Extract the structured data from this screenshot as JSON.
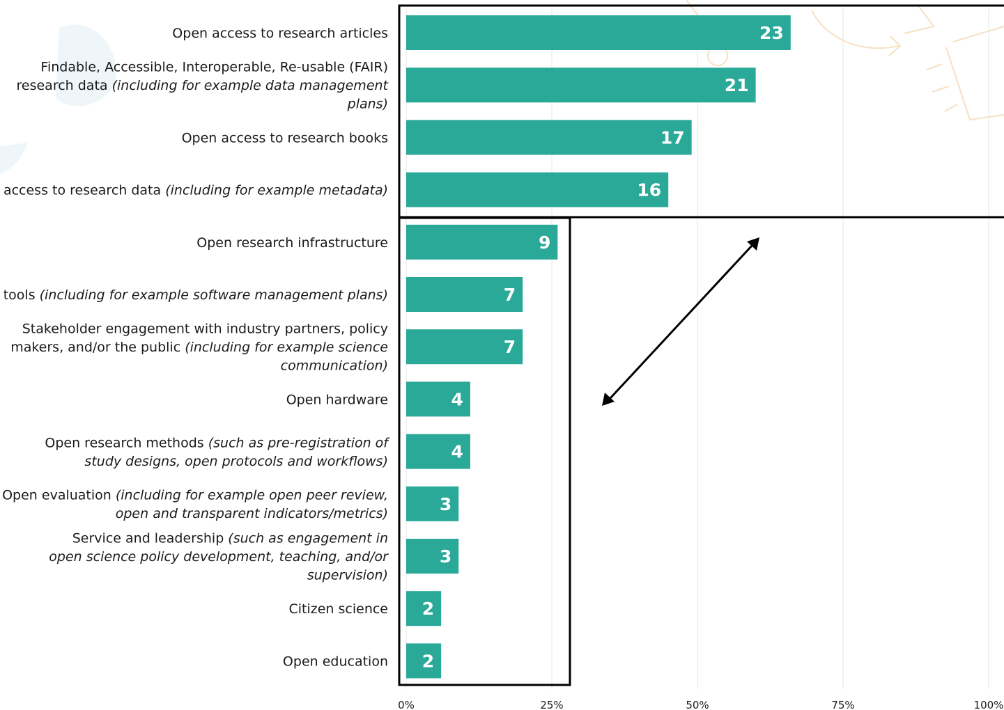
{
  "chart_data": {
    "type": "bar",
    "orientation": "horizontal",
    "title": "",
    "xlabel": "",
    "ylabel": "",
    "xlim": [
      0,
      100
    ],
    "x_ticks": [
      "0%",
      "25%",
      "50%",
      "75%",
      "100%"
    ],
    "grid": true,
    "bar_color": "#2aa898",
    "categories": [
      {
        "plain": "Open access to research articles",
        "italic": ""
      },
      {
        "plain": "Findable, Accessible, Interoperable, Re-usable (FAIR) research data",
        "italic": "(including for example data management plans)"
      },
      {
        "plain": "Open access to research books",
        "italic": ""
      },
      {
        "plain": "Open access to research data",
        "italic": "(including for example metadata)"
      },
      {
        "plain": "Open research infrastructure",
        "italic": ""
      },
      {
        "plain": "Open source research software, code, and tools",
        "italic": "(including for example software management plans)"
      },
      {
        "plain": "Stakeholder engagement with industry partners, policy makers, and/or the public",
        "italic": "(including for example science communication)"
      },
      {
        "plain": "Open hardware",
        "italic": ""
      },
      {
        "plain": "Open research methods",
        "italic": "(such as pre-registration of study designs, open protocols and workflows)"
      },
      {
        "plain": "Open evaluation",
        "italic": "(including for example open peer review, open and transparent indicators/metrics)"
      },
      {
        "plain": "Service and leadership",
        "italic": "(such as engagement in open science policy development, teaching, and/or supervision)"
      },
      {
        "plain": "Citizen science",
        "italic": ""
      },
      {
        "plain": "Open education",
        "italic": ""
      }
    ],
    "values": [
      23,
      21,
      17,
      16,
      9,
      7,
      7,
      4,
      4,
      3,
      3,
      2,
      2
    ],
    "percent_of_axis": [
      66,
      60,
      49,
      45,
      26,
      20,
      20,
      11,
      11,
      9,
      9,
      6,
      6
    ],
    "groups": [
      {
        "name": "top",
        "items": [
          0,
          1,
          2,
          3
        ]
      },
      {
        "name": "bottom",
        "items": [
          4,
          5,
          6,
          7,
          8,
          9,
          10,
          11,
          12
        ]
      }
    ]
  }
}
